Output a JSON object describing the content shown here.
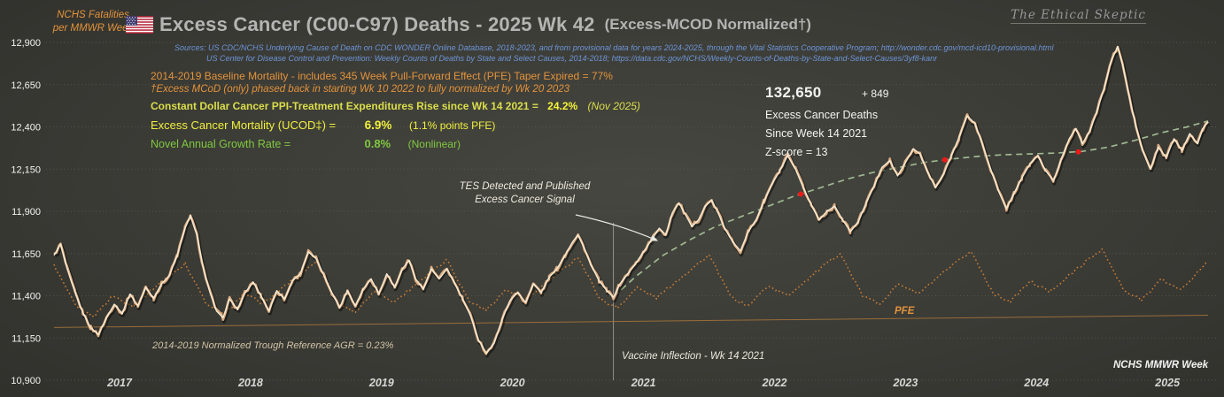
{
  "header": {
    "title_main": "Excess Cancer (C00-C97) Deaths - 2025 Wk 42",
    "title_sub": "(Excess-MCOD  Normalized†)",
    "watermark": "The Ethical Skeptic",
    "y_axis_title_line1": "NCHS Fatalities",
    "y_axis_title_line2": "per MMWR Week"
  },
  "sources": {
    "label": "Sources:",
    "line1": "US CDC/NCHS Underlying Cause of Death on CDC WONDER Online Database, 2018-2023, and from provisional data for years 2024-2025, through the Vital Statistics Cooperative Program; http://wonder.cdc.gov/mcd-icd10-provisional.html",
    "line2": "US Center for Disease Control and Prevention:  Weekly Counts of Deaths by State and Select Causes, 2014-2018; https://data.cdc.gov/NCHS/Weekly-Counts-of-Deaths-by-State-and-Select-Causes/3yf8-kanr"
  },
  "stats_left": {
    "baseline_line": "2014-2019 Baseline Mortality - includes 345 Week Pull-Forward Effect (PFE) Taper Expired =  77%",
    "mcod_note": "†Excess  MCoD (only) phased back in starting  Wk 10 2022 to fully normalized  by Wk 20 2023",
    "ppi_label": "Constant Dollar Cancer PPI-Treatment Expenditures Rise since Wk 14 2021  =",
    "ppi_value": "24.2%",
    "ppi_note": "(Nov 2025)",
    "ucod_label": "Excess Cancer Mortality (UCOD‡) =",
    "ucod_value": "6.9%",
    "ucod_note": "(1.1%  points PFE)",
    "agr_label": "Novel Annual Growth  Rate =",
    "agr_value": "0.8%",
    "agr_note": "(Nonlinear)"
  },
  "stats_right": {
    "total": "132,650",
    "delta": "+ 849",
    "line2": "Excess Cancer Deaths",
    "line3": "Since Week 14 2021",
    "zscore": "Z-score =  13"
  },
  "annotations": {
    "tes_line1": "TES Detected and Published",
    "tes_line2": "Excess Cancer Signal",
    "vaccine": "Vaccine Inflection - Wk 14 2021",
    "trough": "2014-2019 Normalized Trough Reference  AGR = 0.23%",
    "pfe": "PFE",
    "x_axis_label": "NCHS MMWR Week"
  },
  "colors": {
    "background_center": "#474741",
    "background_edge": "#2b2b27",
    "title": "#b4b4b2",
    "orange_text": "#e2933b",
    "yellow_text": "#f0f03c",
    "yellowgreen_text": "#dade4a",
    "green_text": "#7fc83f",
    "blue_text": "#6c95d6",
    "white_text": "#f2f2f0",
    "tan_text": "#cfc2a4",
    "grid": "#54544e",
    "weekly_line": "#d9ab80",
    "weekly_core": "#f8ecd6",
    "baseline_dotted": "#cd7f32",
    "trend_dashed": "#a4c096",
    "trough_line": "#a8763a",
    "red_dot": "#f01818"
  },
  "chart_data": {
    "type": "line",
    "title": "Excess Cancer (C00-C97) Deaths - 2025 Wk 42 (Excess-MCOD Normalized†)",
    "ylabel": "NCHS Fatalities per MMWR Week",
    "xlabel": "NCHS MMWR Week",
    "axis": {
      "x_start": 2017.0,
      "x_end": 2025.81,
      "ylim": [
        10900,
        12900
      ],
      "yticks": [
        {
          "v": 12900,
          "label": "12,900"
        },
        {
          "v": 12650,
          "label": "12,650"
        },
        {
          "v": 12400,
          "label": "12,400"
        },
        {
          "v": 12150,
          "label": "12,150"
        },
        {
          "v": 11900,
          "label": "11,900"
        },
        {
          "v": 11650,
          "label": "11,650"
        },
        {
          "v": 11400,
          "label": "11,400"
        },
        {
          "v": 11150,
          "label": "11,150"
        },
        {
          "v": 10900,
          "label": "10,900"
        }
      ],
      "x_year_labels": [
        "2017",
        "2018",
        "2019",
        "2020",
        "2021",
        "2022",
        "2023",
        "2024",
        "2025"
      ],
      "grid": "horizontal-dotted",
      "legend": "none"
    },
    "series": [
      {
        "name": "weekly_cancer_deaths",
        "label": "NCHS weekly cancer (C00-C97) fatalities",
        "style": "solid-jagged",
        "jitter": 13,
        "points": [
          [
            2017.0,
            11640
          ],
          [
            2017.05,
            11705
          ],
          [
            2017.1,
            11560
          ],
          [
            2017.16,
            11420
          ],
          [
            2017.22,
            11300
          ],
          [
            2017.28,
            11210
          ],
          [
            2017.34,
            11170
          ],
          [
            2017.4,
            11270
          ],
          [
            2017.46,
            11350
          ],
          [
            2017.52,
            11295
          ],
          [
            2017.58,
            11410
          ],
          [
            2017.64,
            11340
          ],
          [
            2017.7,
            11450
          ],
          [
            2017.76,
            11385
          ],
          [
            2017.82,
            11470
          ],
          [
            2017.88,
            11520
          ],
          [
            2017.94,
            11640
          ],
          [
            2018.0,
            11800
          ],
          [
            2018.04,
            11875
          ],
          [
            2018.09,
            11760
          ],
          [
            2018.14,
            11560
          ],
          [
            2018.19,
            11420
          ],
          [
            2018.24,
            11310
          ],
          [
            2018.29,
            11270
          ],
          [
            2018.34,
            11380
          ],
          [
            2018.4,
            11320
          ],
          [
            2018.46,
            11420
          ],
          [
            2018.52,
            11480
          ],
          [
            2018.58,
            11400
          ],
          [
            2018.64,
            11310
          ],
          [
            2018.7,
            11430
          ],
          [
            2018.76,
            11380
          ],
          [
            2018.82,
            11490
          ],
          [
            2018.88,
            11530
          ],
          [
            2018.94,
            11660
          ],
          [
            2019.0,
            11620
          ],
          [
            2019.06,
            11520
          ],
          [
            2019.12,
            11420
          ],
          [
            2019.18,
            11330
          ],
          [
            2019.24,
            11430
          ],
          [
            2019.3,
            11340
          ],
          [
            2019.36,
            11440
          ],
          [
            2019.42,
            11500
          ],
          [
            2019.48,
            11410
          ],
          [
            2019.54,
            11530
          ],
          [
            2019.6,
            11450
          ],
          [
            2019.66,
            11560
          ],
          [
            2019.71,
            11610
          ],
          [
            2019.76,
            11500
          ],
          [
            2019.82,
            11440
          ],
          [
            2019.88,
            11560
          ],
          [
            2019.94,
            11500
          ],
          [
            2020.0,
            11560
          ],
          [
            2020.06,
            11470
          ],
          [
            2020.12,
            11380
          ],
          [
            2020.18,
            11280
          ],
          [
            2020.24,
            11140
          ],
          [
            2020.3,
            11060
          ],
          [
            2020.36,
            11120
          ],
          [
            2020.42,
            11260
          ],
          [
            2020.48,
            11370
          ],
          [
            2020.54,
            11420
          ],
          [
            2020.6,
            11360
          ],
          [
            2020.66,
            11470
          ],
          [
            2020.72,
            11420
          ],
          [
            2020.78,
            11510
          ],
          [
            2020.84,
            11560
          ],
          [
            2020.9,
            11640
          ],
          [
            2020.96,
            11720
          ],
          [
            2021.0,
            11760
          ],
          [
            2021.05,
            11680
          ],
          [
            2021.1,
            11580
          ],
          [
            2021.16,
            11490
          ],
          [
            2021.22,
            11430
          ],
          [
            2021.27,
            11390
          ],
          [
            2021.32,
            11470
          ],
          [
            2021.38,
            11530
          ],
          [
            2021.44,
            11590
          ],
          [
            2021.5,
            11660
          ],
          [
            2021.56,
            11730
          ],
          [
            2021.62,
            11800
          ],
          [
            2021.67,
            11760
          ],
          [
            2021.72,
            11890
          ],
          [
            2021.77,
            11950
          ],
          [
            2021.82,
            11880
          ],
          [
            2021.87,
            11810
          ],
          [
            2021.92,
            11850
          ],
          [
            2021.97,
            11930
          ],
          [
            2022.02,
            11965
          ],
          [
            2022.07,
            11890
          ],
          [
            2022.12,
            11800
          ],
          [
            2022.18,
            11720
          ],
          [
            2022.24,
            11665
          ],
          [
            2022.3,
            11780
          ],
          [
            2022.36,
            11850
          ],
          [
            2022.42,
            11960
          ],
          [
            2022.48,
            12060
          ],
          [
            2022.54,
            12140
          ],
          [
            2022.6,
            12230
          ],
          [
            2022.66,
            12150
          ],
          [
            2022.72,
            12040
          ],
          [
            2022.78,
            11940
          ],
          [
            2022.84,
            11850
          ],
          [
            2022.9,
            11900
          ],
          [
            2022.96,
            11930
          ],
          [
            2023.02,
            11850
          ],
          [
            2023.08,
            11780
          ],
          [
            2023.14,
            11840
          ],
          [
            2023.2,
            11950
          ],
          [
            2023.26,
            12050
          ],
          [
            2023.32,
            12160
          ],
          [
            2023.38,
            12200
          ],
          [
            2023.44,
            12110
          ],
          [
            2023.5,
            12190
          ],
          [
            2023.56,
            12270
          ],
          [
            2023.61,
            12240
          ],
          [
            2023.67,
            12130
          ],
          [
            2023.73,
            12040
          ],
          [
            2023.79,
            12120
          ],
          [
            2023.85,
            12230
          ],
          [
            2023.91,
            12340
          ],
          [
            2023.97,
            12465
          ],
          [
            2024.03,
            12420
          ],
          [
            2024.09,
            12290
          ],
          [
            2024.15,
            12150
          ],
          [
            2024.21,
            12020
          ],
          [
            2024.27,
            11915
          ],
          [
            2024.33,
            12010
          ],
          [
            2024.39,
            12100
          ],
          [
            2024.45,
            12180
          ],
          [
            2024.51,
            12230
          ],
          [
            2024.57,
            12140
          ],
          [
            2024.63,
            12080
          ],
          [
            2024.69,
            12210
          ],
          [
            2024.75,
            12330
          ],
          [
            2024.8,
            12390
          ],
          [
            2024.85,
            12300
          ],
          [
            2024.91,
            12380
          ],
          [
            2024.96,
            12490
          ],
          [
            2025.02,
            12640
          ],
          [
            2025.07,
            12790
          ],
          [
            2025.12,
            12875
          ],
          [
            2025.16,
            12760
          ],
          [
            2025.21,
            12570
          ],
          [
            2025.26,
            12400
          ],
          [
            2025.31,
            12260
          ],
          [
            2025.37,
            12150
          ],
          [
            2025.43,
            12280
          ],
          [
            2025.49,
            12220
          ],
          [
            2025.55,
            12330
          ],
          [
            2025.61,
            12260
          ],
          [
            2025.67,
            12360
          ],
          [
            2025.73,
            12300
          ],
          [
            2025.77,
            12390
          ],
          [
            2025.81,
            12430
          ]
        ]
      },
      {
        "name": "pfe_baseline",
        "label": "2014-2019 Baseline Mortality (PFE)",
        "style": "dotted",
        "jitter": 9,
        "points": [
          [
            2017.0,
            11580
          ],
          [
            2017.17,
            11330
          ],
          [
            2017.3,
            11280
          ],
          [
            2017.45,
            11400
          ],
          [
            2017.6,
            11340
          ],
          [
            2017.8,
            11470
          ],
          [
            2018.0,
            11592
          ],
          [
            2018.17,
            11342
          ],
          [
            2018.3,
            11292
          ],
          [
            2018.45,
            11412
          ],
          [
            2018.6,
            11352
          ],
          [
            2018.8,
            11482
          ],
          [
            2019.0,
            11604
          ],
          [
            2019.17,
            11354
          ],
          [
            2019.3,
            11304
          ],
          [
            2019.45,
            11424
          ],
          [
            2019.6,
            11364
          ],
          [
            2019.8,
            11494
          ],
          [
            2020.0,
            11616
          ],
          [
            2020.17,
            11366
          ],
          [
            2020.3,
            11316
          ],
          [
            2020.45,
            11436
          ],
          [
            2020.6,
            11376
          ],
          [
            2020.8,
            11506
          ],
          [
            2021.0,
            11628
          ],
          [
            2021.17,
            11378
          ],
          [
            2021.3,
            11328
          ],
          [
            2021.45,
            11448
          ],
          [
            2021.6,
            11388
          ],
          [
            2021.8,
            11518
          ],
          [
            2022.0,
            11640
          ],
          [
            2022.17,
            11390
          ],
          [
            2022.3,
            11340
          ],
          [
            2022.45,
            11460
          ],
          [
            2022.6,
            11400
          ],
          [
            2022.8,
            11530
          ],
          [
            2023.0,
            11652
          ],
          [
            2023.17,
            11402
          ],
          [
            2023.3,
            11352
          ],
          [
            2023.45,
            11472
          ],
          [
            2023.6,
            11412
          ],
          [
            2023.8,
            11542
          ],
          [
            2024.0,
            11664
          ],
          [
            2024.17,
            11414
          ],
          [
            2024.3,
            11364
          ],
          [
            2024.45,
            11484
          ],
          [
            2024.6,
            11424
          ],
          [
            2024.8,
            11554
          ],
          [
            2025.0,
            11676
          ],
          [
            2025.17,
            11426
          ],
          [
            2025.3,
            11376
          ],
          [
            2025.45,
            11496
          ],
          [
            2025.6,
            11436
          ],
          [
            2025.81,
            11600
          ]
        ]
      },
      {
        "name": "tes_signal_trend",
        "label": "TES Detected and Published Excess Cancer Signal",
        "style": "dashed",
        "points": [
          [
            2021.27,
            11395
          ],
          [
            2021.45,
            11520
          ],
          [
            2021.65,
            11640
          ],
          [
            2021.85,
            11730
          ],
          [
            2022.05,
            11810
          ],
          [
            2022.25,
            11870
          ],
          [
            2022.45,
            11930
          ],
          [
            2022.65,
            11990
          ],
          [
            2022.85,
            12040
          ],
          [
            2023.05,
            12090
          ],
          [
            2023.25,
            12130
          ],
          [
            2023.45,
            12160
          ],
          [
            2023.65,
            12190
          ],
          [
            2023.85,
            12210
          ],
          [
            2024.05,
            12225
          ],
          [
            2024.25,
            12235
          ],
          [
            2024.45,
            12240
          ],
          [
            2024.65,
            12245
          ],
          [
            2024.85,
            12255
          ],
          [
            2025.05,
            12280
          ],
          [
            2025.25,
            12320
          ],
          [
            2025.45,
            12365
          ],
          [
            2025.65,
            12400
          ],
          [
            2025.81,
            12435
          ]
        ]
      },
      {
        "name": "trough_reference",
        "label": "2014-2019 Normalized Trough Reference AGR = 0.23%",
        "style": "solid",
        "points": [
          [
            2017.0,
            11212
          ],
          [
            2025.81,
            11285
          ]
        ]
      }
    ],
    "markers": {
      "red_dots": [
        [
          2022.7,
          12002
        ],
        [
          2023.8,
          12205
        ],
        [
          2024.82,
          12252
        ]
      ],
      "vaccine_inflection_t": 2021.27
    }
  }
}
